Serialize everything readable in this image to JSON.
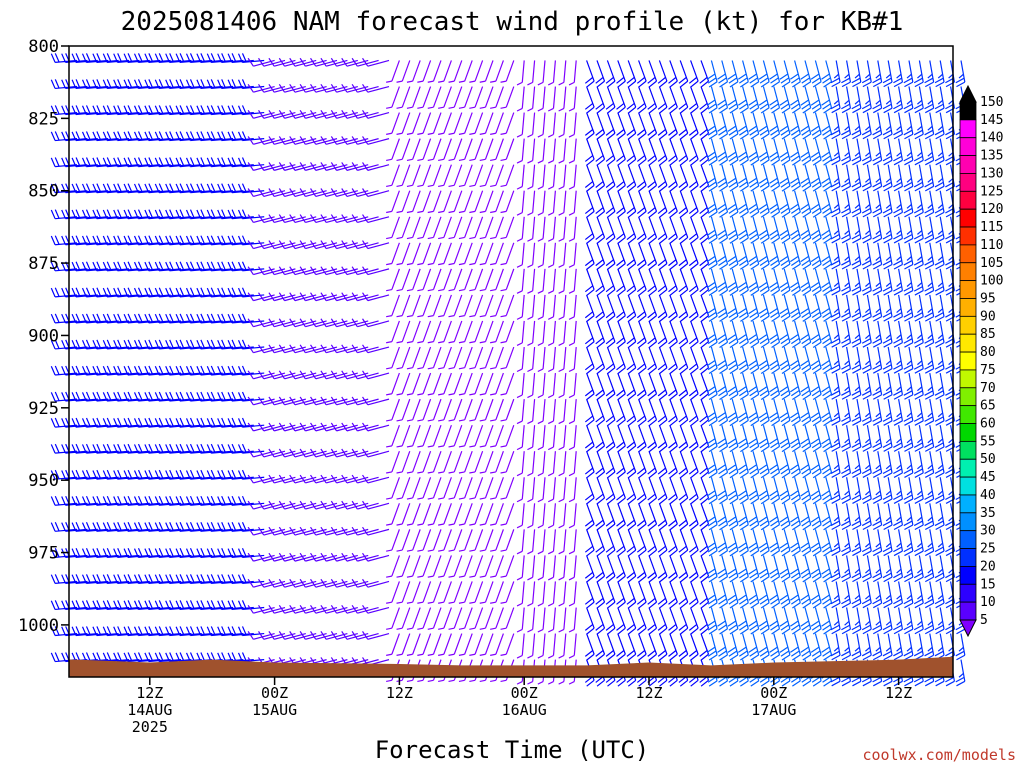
{
  "chart_data": {
    "type": "wind_barb_timeseries",
    "title": "2025081406 NAM forecast wind profile (kt) for KB#1",
    "xlabel": "Forecast Time (UTC)",
    "ylabel": "",
    "y_axis": {
      "scale": "pressure (inverted)",
      "ylim": [
        1018,
        800
      ],
      "ticks": [
        800,
        825,
        850,
        875,
        900,
        925,
        950,
        975,
        1000
      ]
    },
    "x_axis": {
      "start": "2025-08-14T05:00Z",
      "end": "2025-08-17T19:00Z",
      "step_hours": 1,
      "ticks": [
        {
          "hours": 7,
          "lines": [
            "12Z",
            "14AUG",
            "2025"
          ]
        },
        {
          "hours": 19,
          "lines": [
            "00Z",
            "15AUG"
          ]
        },
        {
          "hours": 31,
          "lines": [
            "12Z"
          ]
        },
        {
          "hours": 43,
          "lines": [
            "00Z",
            "16AUG"
          ]
        },
        {
          "hours": 55,
          "lines": [
            "12Z"
          ]
        },
        {
          "hours": 67,
          "lines": [
            "00Z",
            "17AUG"
          ]
        },
        {
          "hours": 79,
          "lines": [
            "12Z"
          ]
        }
      ]
    },
    "barb_levels_hPa": [
      805,
      814,
      823,
      832,
      841,
      850,
      859,
      868,
      877,
      886,
      895,
      904,
      913,
      922,
      931,
      940,
      949,
      958,
      967,
      976,
      985,
      994,
      1003,
      1012
    ],
    "wind_regimes": [
      {
        "from_hours": 0,
        "to_hours": 19,
        "direction_deg": 265,
        "speed_kt": 20
      },
      {
        "from_hours": 19,
        "to_hours": 31,
        "direction_deg": 255,
        "speed_kt": 12
      },
      {
        "from_hours": 31,
        "to_hours": 43,
        "direction_deg": 200,
        "speed_kt": 8
      },
      {
        "from_hours": 43,
        "to_hours": 49,
        "direction_deg": 185,
        "speed_kt": 8
      },
      {
        "from_hours": 49,
        "to_hours": 61,
        "direction_deg": 160,
        "speed_kt": 20
      },
      {
        "from_hours": 61,
        "to_hours": 73,
        "direction_deg": 165,
        "speed_kt": 30
      },
      {
        "from_hours": 73,
        "to_hours": 85,
        "direction_deg": 170,
        "speed_kt": 25
      }
    ],
    "surface_pressure_hPa": [
      {
        "hours": 0,
        "value": 1012
      },
      {
        "hours": 7,
        "value": 1013
      },
      {
        "hours": 13,
        "value": 1012
      },
      {
        "hours": 19,
        "value": 1013
      },
      {
        "hours": 31,
        "value": 1013.5
      },
      {
        "hours": 37,
        "value": 1014
      },
      {
        "hours": 49,
        "value": 1014
      },
      {
        "hours": 55,
        "value": 1013
      },
      {
        "hours": 61,
        "value": 1014
      },
      {
        "hours": 67,
        "value": 1013
      },
      {
        "hours": 79,
        "value": 1012
      },
      {
        "hours": 85,
        "value": 1011
      }
    ],
    "colorbar": {
      "values": [
        5,
        10,
        15,
        20,
        25,
        30,
        35,
        40,
        45,
        50,
        55,
        60,
        65,
        70,
        75,
        80,
        85,
        90,
        95,
        100,
        105,
        110,
        115,
        120,
        125,
        130,
        135,
        140,
        145,
        150
      ],
      "colors": [
        "#8000ff",
        "#5a00ff",
        "#2d00ff",
        "#0000ff",
        "#0030ff",
        "#0060ff",
        "#0090ff",
        "#00b0ff",
        "#00e0e0",
        "#00f0b0",
        "#00e060",
        "#00d800",
        "#40e800",
        "#80f000",
        "#c0f800",
        "#ffff00",
        "#ffe800",
        "#ffd000",
        "#ffb000",
        "#ff9800",
        "#ff8000",
        "#ff6000",
        "#ff3000",
        "#ff0000",
        "#ff0040",
        "#ff0080",
        "#ff00b0",
        "#ff00d8",
        "#ff00ff",
        "#000000"
      ]
    },
    "colors": {
      "terrain": "#a0522d",
      "axis": "#000000"
    }
  },
  "credit": "coolwx.com/models"
}
